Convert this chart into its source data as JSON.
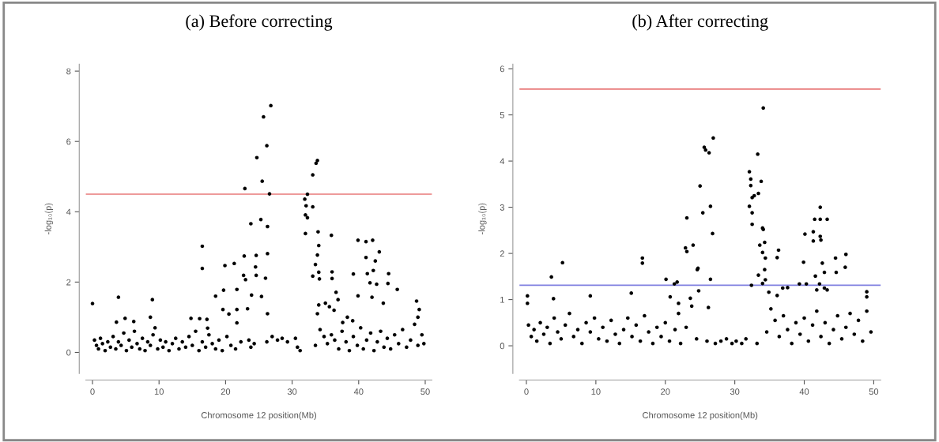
{
  "chart_data": [
    {
      "type": "scatter",
      "title": "(a) Before correcting",
      "xlabel": "Chromosome 12 position(Mb)",
      "ylabel": "-log₁₀(p)",
      "xlim": [
        -1,
        51
      ],
      "xticks": [
        0,
        10,
        20,
        30,
        40,
        50
      ],
      "ylim": [
        -0.6,
        8.2
      ],
      "yticks": [
        0,
        2,
        4,
        6,
        8
      ],
      "grid": false,
      "marker": "circle",
      "ref_lines": [
        {
          "axis": "y",
          "value": 4.5,
          "color": "#e87878"
        }
      ],
      "series": [
        {
          "color": "#000000",
          "x": [
            26.8,
            25.7,
            26.2,
            24.7,
            25.5,
            22.9,
            26.6,
            32.3,
            33.8,
            33.6,
            33.1,
            31.9,
            32.1,
            33.1,
            32.0,
            32.3,
            32.0,
            23.8,
            25.3,
            26.3,
            33.9,
            35.9,
            34.0,
            33.8,
            33.5,
            34.0,
            33.1,
            34.1,
            16.5,
            16.5,
            22.8,
            24.6,
            24.5,
            24.6,
            26.3,
            26.0,
            22.7,
            23.0,
            19.9,
            21.3,
            19.7,
            21.7,
            18.5,
            23.9,
            25.4,
            23.3,
            19.6,
            20.5,
            21.7,
            26.3,
            21.7,
            39.9,
            41.1,
            42.1,
            41.1,
            43.1,
            42.5,
            39.2,
            41.3,
            42.2,
            42.7,
            41.7,
            44.5,
            44.4,
            45.8,
            36.0,
            36.0,
            36.6,
            36.9,
            39.9,
            42.0,
            43.7,
            48.7,
            49.1,
            48.9,
            34.0,
            35.0,
            35.6,
            36.3,
            33.8,
            38.3,
            39.1,
            37.6,
            0.0,
            3.9,
            9.0,
            4.9,
            3.6,
            6.2,
            8.7,
            14.8,
            16.1,
            17.2,
            17.3,
            0.3,
            0.6,
            0.9,
            1.2,
            1.5,
            1.9,
            2.3,
            2.7,
            3.1,
            3.5,
            3.9,
            4.3,
            4.7,
            5.1,
            5.5,
            5.9,
            6.3,
            6.7,
            7.1,
            7.5,
            7.9,
            8.3,
            8.7,
            9.1,
            9.4,
            9.8,
            10.2,
            10.6,
            11.0,
            11.5,
            12.0,
            12.5,
            13.0,
            13.5,
            14.0,
            14.5,
            15.0,
            15.5,
            16.0,
            16.5,
            17.0,
            17.5,
            18.0,
            18.5,
            19.0,
            19.5,
            20.2,
            20.8,
            21.5,
            22.3,
            23.5,
            23.8,
            24.3,
            26.2,
            27.0,
            27.8,
            28.5,
            29.3,
            30.5,
            30.8,
            31.2,
            33.5,
            34.2,
            34.8,
            35.3,
            35.9,
            36.4,
            37.0,
            37.5,
            38.1,
            38.6,
            39.2,
            39.8,
            40.3,
            40.7,
            41.2,
            41.8,
            42.3,
            42.8,
            43.3,
            43.8,
            44.3,
            44.8,
            45.4,
            46.0,
            46.6,
            47.2,
            47.8,
            48.4,
            48.9,
            49.5,
            49.8
          ],
          "values": [
            7.02,
            6.7,
            5.88,
            5.54,
            4.87,
            4.66,
            4.51,
            4.5,
            5.46,
            5.38,
            5.05,
            4.36,
            4.17,
            4.14,
            3.91,
            3.83,
            3.38,
            3.66,
            3.78,
            3.58,
            3.43,
            3.33,
            3.04,
            2.77,
            2.5,
            2.28,
            2.17,
            2.09,
            3.02,
            2.39,
            2.74,
            2.76,
            2.43,
            2.19,
            2.81,
            2.11,
            2.19,
            2.07,
            2.47,
            2.53,
            1.77,
            1.79,
            1.6,
            1.63,
            1.59,
            1.24,
            1.22,
            1.09,
            1.22,
            1.1,
            0.84,
            3.19,
            3.15,
            3.19,
            2.7,
            2.86,
            2.6,
            2.23,
            2.24,
            2.33,
            1.94,
            1.98,
            2.24,
            1.96,
            1.79,
            2.29,
            2.1,
            1.71,
            1.5,
            1.61,
            1.57,
            1.4,
            1.46,
            1.22,
            1.0,
            1.35,
            1.4,
            1.3,
            1.2,
            1.1,
            1.0,
            0.9,
            0.85,
            1.39,
            1.57,
            1.5,
            0.97,
            0.86,
            0.88,
            1.0,
            0.97,
            0.96,
            0.94,
            0.69,
            0.35,
            0.2,
            0.1,
            0.4,
            0.25,
            0.05,
            0.3,
            0.15,
            0.45,
            0.1,
            0.3,
            0.2,
            0.55,
            0.05,
            0.35,
            0.15,
            0.6,
            0.25,
            0.1,
            0.4,
            0.05,
            0.3,
            0.2,
            0.5,
            0.7,
            0.1,
            0.35,
            0.15,
            0.3,
            0.05,
            0.25,
            0.4,
            0.1,
            0.3,
            0.15,
            0.45,
            0.2,
            0.6,
            0.05,
            0.3,
            0.15,
            0.5,
            0.25,
            0.1,
            0.35,
            0.05,
            0.45,
            0.2,
            0.1,
            0.3,
            0.35,
            0.15,
            0.25,
            0.3,
            0.45,
            0.35,
            0.4,
            0.3,
            0.4,
            0.15,
            0.05,
            0.2,
            0.65,
            0.45,
            0.25,
            0.5,
            0.35,
            0.1,
            0.6,
            0.3,
            0.05,
            0.45,
            0.2,
            0.7,
            0.1,
            0.35,
            0.55,
            0.05,
            0.3,
            0.6,
            0.15,
            0.4,
            0.1,
            0.5,
            0.25,
            0.65,
            0.15,
            0.35,
            0.8,
            0.2,
            0.5,
            0.25
          ]
        }
      ]
    },
    {
      "type": "scatter",
      "title": "(b) After correcting",
      "xlabel": "Chromosome 12 position(Mb)",
      "ylabel": "-log₁₀(p)",
      "xlim": [
        -1,
        51
      ],
      "xticks": [
        0,
        10,
        20,
        30,
        40,
        50
      ],
      "ylim": [
        -0.6,
        6.1
      ],
      "yticks": [
        0,
        1,
        2,
        3,
        4,
        5,
        6
      ],
      "grid": false,
      "marker": "circle",
      "ref_lines": [
        {
          "axis": "y",
          "value": 5.56,
          "color": "#e87878"
        },
        {
          "axis": "y",
          "value": 1.31,
          "color": "#8080e0"
        }
      ],
      "series": [
        {
          "color": "#000000",
          "x": [
            34.1,
            26.9,
            25.6,
            25.8,
            26.3,
            33.3,
            32.1,
            32.3,
            32.3,
            33.8,
            33.4,
            32.8,
            32.5,
            32.1,
            32.5,
            32.5,
            25.0,
            25.4,
            26.5,
            26.8,
            23.1,
            22.9,
            23.1,
            24.0,
            24.7,
            24.6,
            26.5,
            24.8,
            34.0,
            34.1,
            33.6,
            34.3,
            34.0,
            34.4,
            34.3,
            33.4,
            34.4,
            34.0,
            32.4,
            36.3,
            36.1,
            34.9,
            36.1,
            36.9,
            37.6,
            42.3,
            41.5,
            42.3,
            43.3,
            40.1,
            41.3,
            41.3,
            42.3,
            42.4,
            44.5,
            46.0,
            44.6,
            45.9,
            39.9,
            42.6,
            42.9,
            41.6,
            39.3,
            40.3,
            42.2,
            42.9,
            41.8,
            43.3,
            49.0,
            49.0,
            16.7,
            16.7,
            5.2,
            3.6,
            3.9,
            9.2,
            15.1,
            20.1,
            21.7,
            21.3,
            0.15,
            0.15,
            20.7,
            21.9,
            21.9,
            23.6,
            23.8,
            26.2,
            0.3,
            0.7,
            1.1,
            1.5,
            2.0,
            2.5,
            3.0,
            3.4,
            4.0,
            4.5,
            5.0,
            5.6,
            6.2,
            6.8,
            7.4,
            8.0,
            8.6,
            9.2,
            9.8,
            10.4,
            11.0,
            11.6,
            12.2,
            12.8,
            13.4,
            14.0,
            14.6,
            15.2,
            15.8,
            16.4,
            17.0,
            17.6,
            18.2,
            18.8,
            19.4,
            20.0,
            20.6,
            21.4,
            22.2,
            23.0,
            24.5,
            26.0,
            27.2,
            28.0,
            28.8,
            29.6,
            30.2,
            31.0,
            31.6,
            33.2,
            34.6,
            35.2,
            35.8,
            36.4,
            37.0,
            37.6,
            38.2,
            38.8,
            39.4,
            40.0,
            40.6,
            41.2,
            41.8,
            42.4,
            43.0,
            43.6,
            44.2,
            44.8,
            45.4,
            46.0,
            46.6,
            47.2,
            47.8,
            48.4,
            49.0,
            49.6
          ],
          "values": [
            5.15,
            4.5,
            4.3,
            4.24,
            4.18,
            4.15,
            3.77,
            3.61,
            3.47,
            3.56,
            3.3,
            3.25,
            3.21,
            3.02,
            2.88,
            2.63,
            3.46,
            2.88,
            3.02,
            2.43,
            2.77,
            2.12,
            2.04,
            2.18,
            1.68,
            1.65,
            1.44,
            1.19,
            2.55,
            2.52,
            2.18,
            2.24,
            2.02,
            1.9,
            1.65,
            1.53,
            1.43,
            1.35,
            1.31,
            2.07,
            1.91,
            1.16,
            1.09,
            1.25,
            1.26,
            3.0,
            2.74,
            2.74,
            2.74,
            2.42,
            2.47,
            2.27,
            2.37,
            2.29,
            1.9,
            1.98,
            1.59,
            1.7,
            1.81,
            1.79,
            1.59,
            1.51,
            1.34,
            1.34,
            1.34,
            1.25,
            1.21,
            1.21,
            1.17,
            1.06,
            1.9,
            1.79,
            1.8,
            1.49,
            1.02,
            1.08,
            1.14,
            1.44,
            1.38,
            1.34,
            1.08,
            0.92,
            1.06,
            0.92,
            0.7,
            1.03,
            0.86,
            0.83,
            0.45,
            0.2,
            0.35,
            0.1,
            0.5,
            0.25,
            0.4,
            0.05,
            0.6,
            0.3,
            0.15,
            0.45,
            0.7,
            0.2,
            0.35,
            0.05,
            0.5,
            0.3,
            0.6,
            0.15,
            0.4,
            0.1,
            0.55,
            0.25,
            0.05,
            0.35,
            0.6,
            0.2,
            0.45,
            0.1,
            0.65,
            0.3,
            0.05,
            0.4,
            0.2,
            0.5,
            0.1,
            0.35,
            0.05,
            0.4,
            0.15,
            0.1,
            0.05,
            0.1,
            0.15,
            0.05,
            0.1,
            0.05,
            0.15,
            0.05,
            0.3,
            0.8,
            0.55,
            0.2,
            0.65,
            0.35,
            0.05,
            0.5,
            0.25,
            0.6,
            0.1,
            0.45,
            0.75,
            0.2,
            0.5,
            0.05,
            0.35,
            0.65,
            0.15,
            0.4,
            0.7,
            0.25,
            0.55,
            0.1,
            0.75,
            0.3
          ]
        }
      ]
    }
  ]
}
